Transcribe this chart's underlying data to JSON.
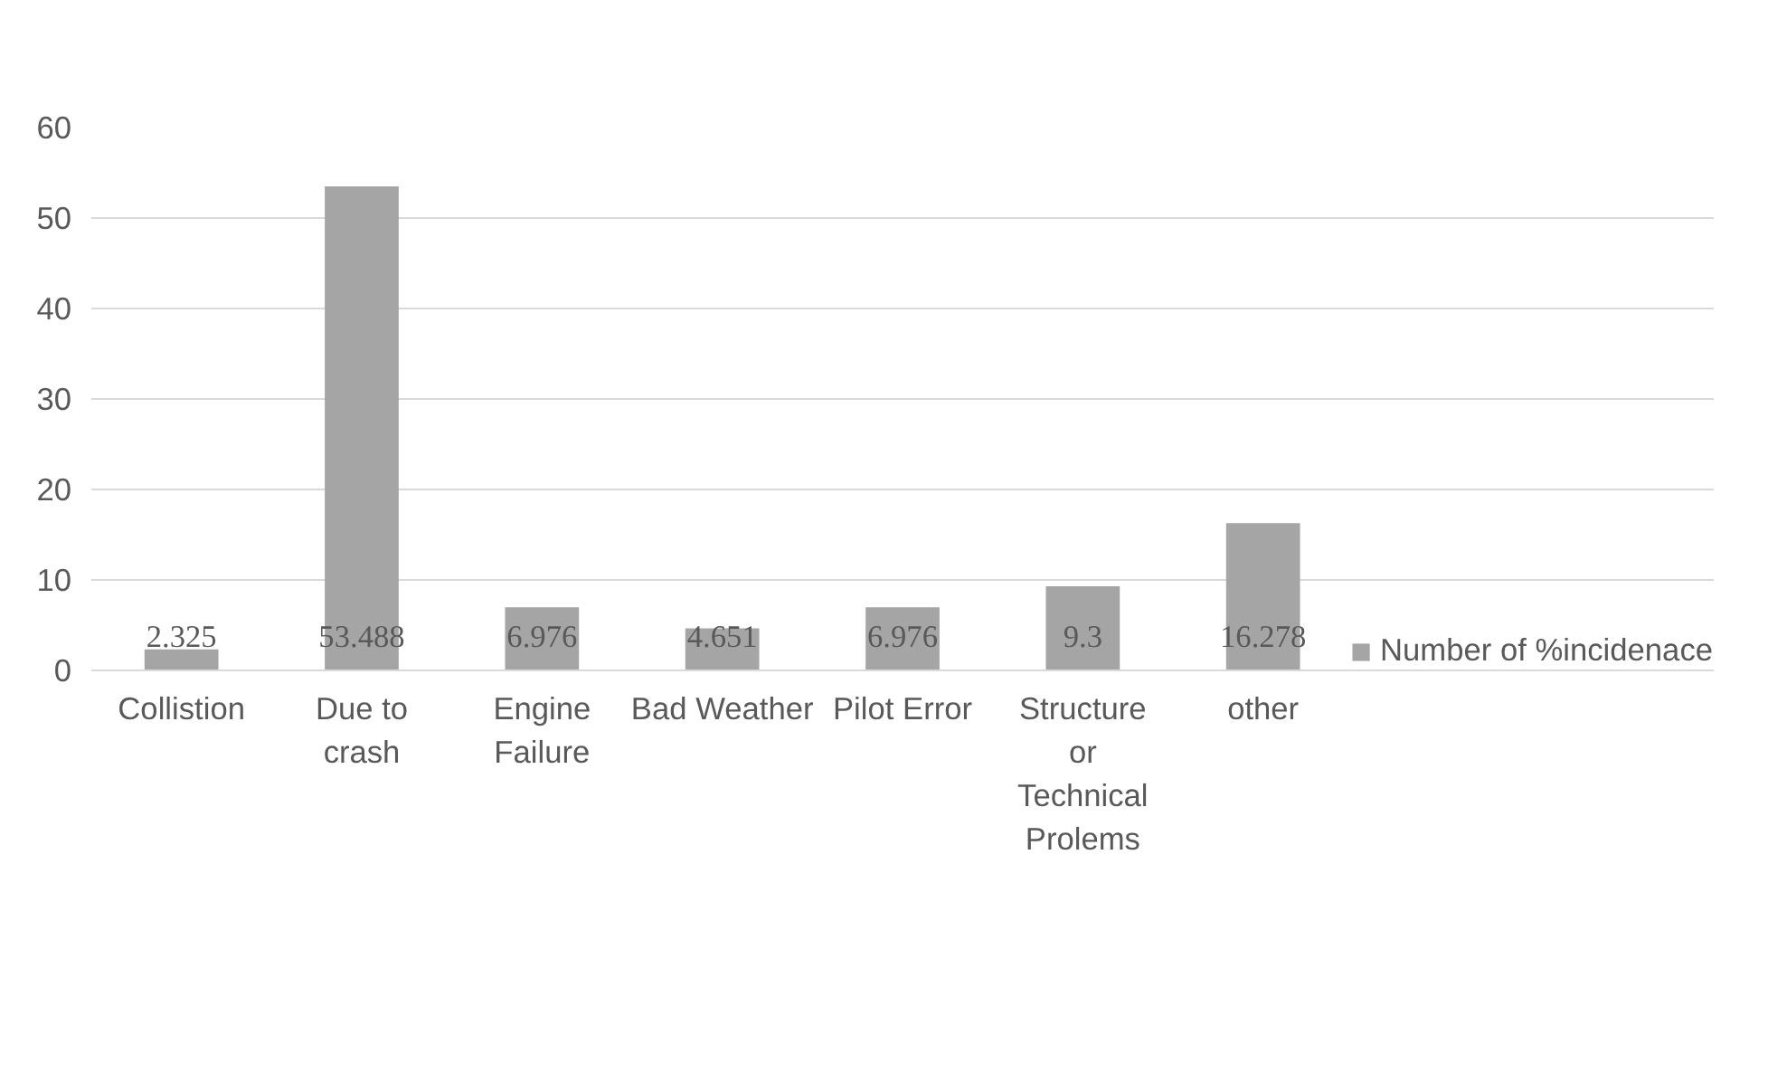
{
  "chart_data": {
    "type": "bar",
    "categories": [
      "Collistion",
      "Due to crash",
      "Engine Failure",
      "Bad Weather",
      "Pilot Error",
      "Structure or Technical Prolems",
      "other",
      null,
      null
    ],
    "series": [
      {
        "name": "Number of %incidenace",
        "color": "#a5a5a5",
        "values": [
          2.325,
          53.488,
          6.976,
          4.651,
          6.976,
          9.3,
          16.278,
          null,
          null
        ]
      }
    ],
    "value_labels": [
      "2.325",
      "53.488",
      "6.976",
      "4.651",
      "6.976",
      "9.3",
      "16.278",
      null,
      null
    ],
    "ylim": [
      0,
      60
    ],
    "yticks": [
      0,
      10,
      20,
      30,
      40,
      50,
      60
    ],
    "grid": "y",
    "legend": "bottom right"
  }
}
